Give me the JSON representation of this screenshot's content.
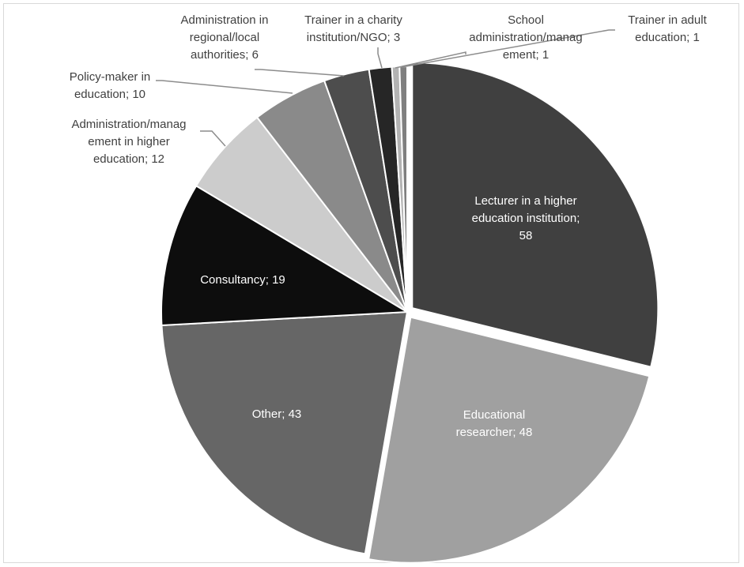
{
  "chart_data": {
    "type": "pie",
    "title": "",
    "legend": "none",
    "slices": [
      {
        "label": "Lecturer in a higher education institution",
        "value": 58,
        "color": "#404040",
        "text_color": "#ffffff",
        "explode": true,
        "label_lines": [
          "Lecturer in a higher",
          "education institution;",
          "58"
        ]
      },
      {
        "label": "Educational researcher",
        "value": 48,
        "color": "#a0a0a0",
        "text_color": "#ffffff",
        "explode": true,
        "label_lines": [
          "Educational",
          "researcher; 48"
        ]
      },
      {
        "label": "Other",
        "value": 43,
        "color": "#666666",
        "text_color": "#ffffff",
        "explode": false,
        "label_lines": [
          "Other; 43"
        ]
      },
      {
        "label": "Consultancy",
        "value": 19,
        "color": "#0d0d0d",
        "text_color": "#ffffff",
        "explode": false,
        "label_lines": [
          "Consultancy; 19"
        ]
      },
      {
        "label": "Administration/management in higher education",
        "value": 12,
        "color": "#cccccc",
        "text_color": "#404040",
        "explode": false,
        "label_lines": [
          "Administration/manag",
          "ement in higher",
          "education; 12"
        ]
      },
      {
        "label": "Policy-maker in education",
        "value": 10,
        "color": "#8a8a8a",
        "text_color": "#404040",
        "explode": false,
        "label_lines": [
          "Policy-maker in",
          "education; 10"
        ]
      },
      {
        "label": "Administration in regional/local authorities",
        "value": 6,
        "color": "#4d4d4d",
        "text_color": "#404040",
        "explode": false,
        "label_lines": [
          "Administration in",
          "regional/local",
          "authorities; 6"
        ]
      },
      {
        "label": "Trainer in a charity institution/NGO",
        "value": 3,
        "color": "#262626",
        "text_color": "#404040",
        "explode": false,
        "label_lines": [
          "Trainer in a charity",
          "institution/NGO; 3"
        ]
      },
      {
        "label": "School administration/management",
        "value": 1,
        "color": "#b3b3b3",
        "text_color": "#404040",
        "explode": false,
        "label_lines": [
          "School",
          "administration/manag",
          "ement; 1"
        ]
      },
      {
        "label": "Trainer in adult education",
        "value": 1,
        "color": "#7f7f7f",
        "text_color": "#404040",
        "explode": false,
        "label_lines": [
          "Trainer in adult",
          "education; 1"
        ]
      }
    ]
  }
}
